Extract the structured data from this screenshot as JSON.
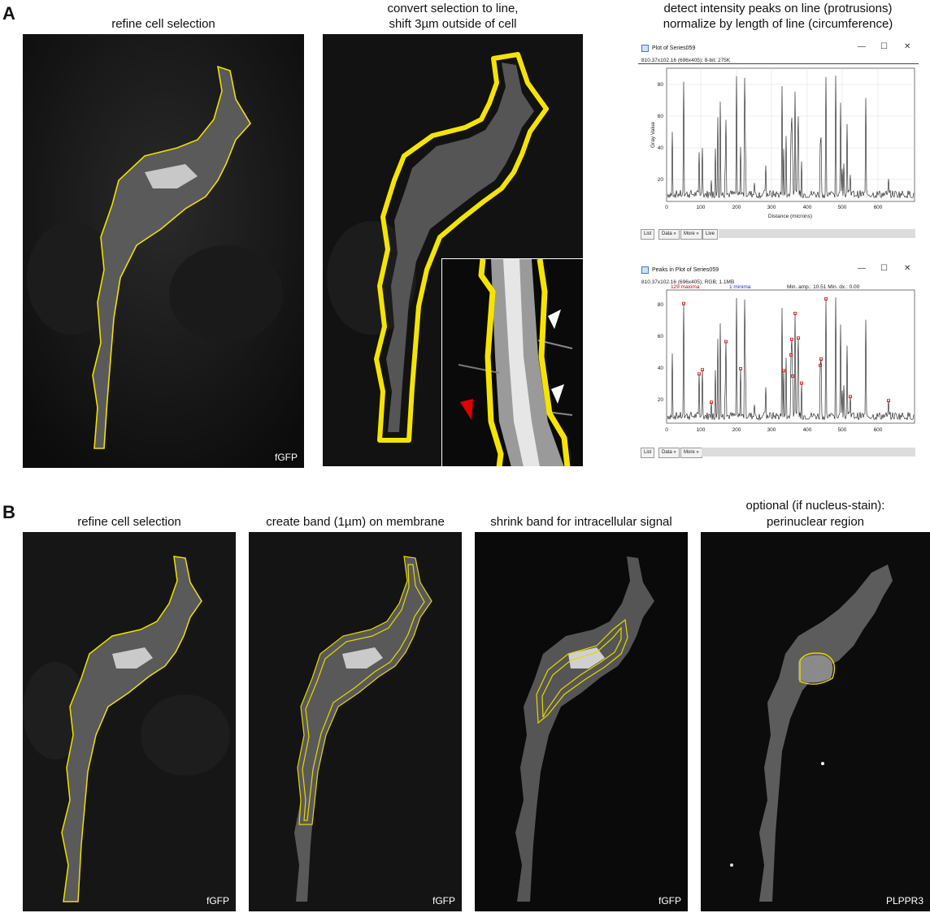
{
  "panel_a": {
    "letter": "A",
    "caption1": "refine cell selection",
    "caption2_line1": "convert selection to line,",
    "caption2_line2": "shift 3µm outside of cell",
    "caption3_line1": "detect intensity peaks on line (protrusions)",
    "caption3_line2": "normalize by length of line (circumference)",
    "channel1": "fGFP",
    "plot_window": {
      "title": "Plot of Series059",
      "info": "810.37x102.16  (696x405); 8-bit; 275K",
      "ylabel": "Gray Value",
      "xlabel": "Distance (microns)",
      "x_ticks": [
        "0",
        "100",
        "200",
        "300",
        "400",
        "500",
        "600"
      ],
      "y_ticks": [
        "20",
        "40",
        "60",
        "80"
      ],
      "buttons": [
        "List",
        "Data »",
        "More »",
        "Live"
      ]
    },
    "peaks_window": {
      "title": "Peaks in Plot of Series059",
      "info": "810.37x102.16  (696x405); RGB; 1.1MB",
      "maxima": "129 maxima",
      "minima": "1 minima",
      "min_amp": "Min. amp.: 10.51  Min. dx.: 0.00",
      "x_ticks": [
        "0",
        "100",
        "200",
        "300",
        "400",
        "500",
        "600"
      ],
      "y_ticks": [
        "20",
        "40",
        "60",
        "80"
      ],
      "buttons": [
        "List",
        "Data »",
        "More »"
      ]
    }
  },
  "panel_b": {
    "letter": "B",
    "caption1": "refine cell selection",
    "caption2": "create band (1µm) on membrane",
    "caption3": "shrink band for intracellular signal",
    "caption4_line1": "optional (if nucleus-stain):",
    "caption4_line2": "perinuclear region",
    "channel1": "fGFP",
    "channel2": "fGFP",
    "channel3": "fGFP",
    "channel4": "PLPPR3"
  },
  "window_controls": {
    "minimize": "—",
    "maximize": "☐",
    "close": "✕"
  },
  "colors": {
    "outline": "#f0e000",
    "peak_marker": "#e00000",
    "arrow_red": "#e00000",
    "arrow_white": "#ffffff"
  }
}
